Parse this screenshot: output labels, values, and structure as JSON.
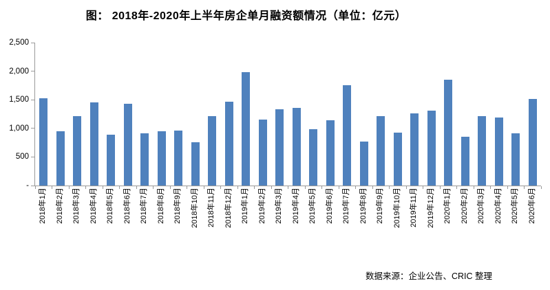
{
  "title": "图：  2018年-2020年上半年房企单月融资额情况（单位：亿元）",
  "source_note": "数据来源：企业公告、CRIC 整理",
  "colors": {
    "bar": "#4F81BD",
    "axis": "#999999",
    "text": "#000000",
    "background": "#FFFFFF"
  },
  "chart_data": {
    "type": "bar",
    "title": "图：  2018年-2020年上半年房企单月融资额情况（单位：亿元）",
    "unit": "亿元",
    "categories": [
      "2018年1月",
      "2018年2月",
      "2018年3月",
      "2018年4月",
      "2018年5月",
      "2018年6月",
      "2018年7月",
      "2018年8月",
      "2018年9月",
      "2018年10月",
      "2018年11月",
      "2018年12月",
      "2019年1月",
      "2019年2月",
      "2019年3月",
      "2019年4月",
      "2019年5月",
      "2019年6月",
      "2019年7月",
      "2019年8月",
      "2019年9月",
      "2019年10月",
      "2019年11月",
      "2019年12月",
      "2020年1月",
      "2020年2月",
      "2020年3月",
      "2020年4月",
      "2020年5月",
      "2020年6月"
    ],
    "values": [
      1530,
      950,
      1210,
      1460,
      890,
      1430,
      915,
      945,
      965,
      760,
      1220,
      1470,
      1980,
      1155,
      1340,
      1355,
      990,
      1140,
      1750,
      770,
      1210,
      930,
      1260,
      1315,
      1850,
      850,
      1210,
      1190,
      910,
      1520
    ],
    "xlabel": "",
    "ylabel": "",
    "ylim": [
      0,
      2500
    ],
    "y_tick_values": [
      0,
      500,
      1000,
      1500,
      2000,
      2500
    ],
    "y_tick_labels": [
      "-",
      "500",
      "1,000",
      "1,500",
      "2,000",
      "2,500"
    ],
    "grid": false,
    "legend_position": "none",
    "bar_color": "#4F81BD",
    "source": "数据来源：企业公告、CRIC 整理"
  }
}
